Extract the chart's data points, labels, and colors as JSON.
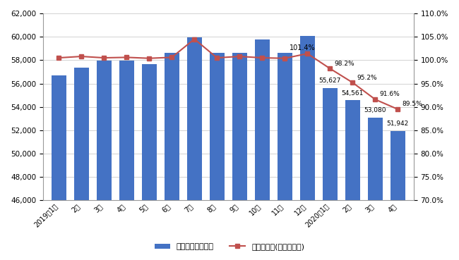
{
  "categories": [
    "2019年1月",
    "2月",
    "3月",
    "4月",
    "5月",
    "6月",
    "7月",
    "8月",
    "9月",
    "10月",
    "11月",
    "12月",
    "2020年1月",
    "2月",
    "3月",
    "4月"
  ],
  "bar_values": [
    56700,
    57350,
    57950,
    57950,
    57680,
    58650,
    59950,
    58600,
    58600,
    59800,
    58620,
    60050,
    55627,
    54561,
    53080,
    51942
  ],
  "line_values": [
    100.5,
    100.8,
    100.5,
    100.6,
    100.4,
    100.6,
    104.5,
    100.5,
    100.8,
    100.5,
    100.4,
    101.4,
    98.2,
    95.2,
    91.6,
    89.5
  ],
  "bar_color": "#4472C4",
  "line_color": "#C0504D",
  "bar_label": "有効求人数（人）",
  "line_label": "有効求人数(前年同月比)",
  "ylim_left": [
    46000,
    62000
  ],
  "ylim_right": [
    70.0,
    110.0
  ],
  "yticks_left": [
    46000,
    48000,
    50000,
    52000,
    54000,
    56000,
    58000,
    60000,
    62000
  ],
  "yticks_right": [
    70.0,
    75.0,
    80.0,
    85.0,
    90.0,
    95.0,
    100.0,
    105.0,
    110.0
  ],
  "background_color": "#ffffff",
  "grid_color": "#c0c0c0",
  "annot_indices": [
    11,
    12,
    13,
    14,
    15
  ],
  "annot_bar_vals": [
    null,
    55627,
    54561,
    53080,
    51942
  ],
  "annot_pct_vals": [
    "101.4%",
    "98.2%",
    "95.2%",
    "91.6%",
    "89.5%"
  ]
}
